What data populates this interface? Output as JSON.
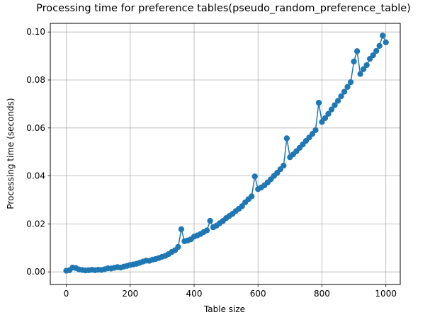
{
  "figure": {
    "title": "Processing time for preference tables(pseudo_random_preference_table)",
    "xlabel": "Table size",
    "ylabel": "Processing time (seconds)"
  },
  "chart_data": {
    "type": "line",
    "marker": "o",
    "color": "#1f77b4",
    "grid": true,
    "grid_color": "#b0b0b0",
    "spine_color": "#000000",
    "title": "Processing time for preference tables(pseudo_random_preference_table)",
    "xlabel": "Table size",
    "ylabel": "Processing time (seconds)",
    "xlim": [
      -50,
      1045
    ],
    "ylim": [
      -0.00525,
      0.1036
    ],
    "xticks": [
      0,
      200,
      400,
      600,
      800,
      1000
    ],
    "xtick_labels": [
      "0",
      "200",
      "400",
      "600",
      "800",
      "1000"
    ],
    "yticks": [
      0.0,
      0.02,
      0.04,
      0.06,
      0.08,
      0.1
    ],
    "ytick_labels": [
      "0.00",
      "0.02",
      "0.04",
      "0.06",
      "0.08",
      "0.10"
    ],
    "x": [
      0,
      10,
      20,
      30,
      40,
      50,
      60,
      70,
      80,
      90,
      100,
      110,
      120,
      130,
      140,
      150,
      160,
      170,
      180,
      190,
      200,
      210,
      220,
      230,
      240,
      250,
      260,
      270,
      280,
      290,
      300,
      310,
      320,
      330,
      340,
      350,
      360,
      370,
      380,
      390,
      400,
      410,
      420,
      430,
      440,
      450,
      460,
      470,
      480,
      490,
      500,
      510,
      520,
      530,
      540,
      550,
      560,
      570,
      580,
      590,
      600,
      610,
      620,
      630,
      640,
      650,
      660,
      670,
      680,
      690,
      700,
      710,
      720,
      730,
      740,
      750,
      760,
      770,
      780,
      790,
      800,
      810,
      820,
      830,
      840,
      850,
      860,
      870,
      880,
      890,
      900,
      910,
      920,
      930,
      940,
      950,
      960,
      970,
      980,
      990,
      1000
    ],
    "y": [
      0.0005,
      0.0007,
      0.0018,
      0.0016,
      0.001,
      0.0008,
      0.0006,
      0.0007,
      0.0009,
      0.0007,
      0.0009,
      0.0008,
      0.0011,
      0.0015,
      0.0014,
      0.0017,
      0.002,
      0.0018,
      0.0022,
      0.0025,
      0.0029,
      0.0031,
      0.0034,
      0.0038,
      0.0043,
      0.0047,
      0.0046,
      0.0051,
      0.0054,
      0.0058,
      0.0063,
      0.0067,
      0.0074,
      0.0083,
      0.009,
      0.0104,
      0.0178,
      0.0128,
      0.0131,
      0.0136,
      0.0147,
      0.0152,
      0.0158,
      0.0166,
      0.0173,
      0.0213,
      0.0186,
      0.0193,
      0.0203,
      0.0212,
      0.0224,
      0.0233,
      0.0242,
      0.0253,
      0.0263,
      0.0274,
      0.029,
      0.0303,
      0.0315,
      0.0398,
      0.0345,
      0.0352,
      0.0361,
      0.0373,
      0.0386,
      0.04,
      0.0413,
      0.0428,
      0.0443,
      0.0557,
      0.0478,
      0.049,
      0.0503,
      0.0517,
      0.0531,
      0.0546,
      0.056,
      0.0575,
      0.0591,
      0.0705,
      0.0625,
      0.0641,
      0.0659,
      0.0677,
      0.0695,
      0.0713,
      0.0732,
      0.0751,
      0.0771,
      0.0791,
      0.0877,
      0.092,
      0.0825,
      0.0845,
      0.0862,
      0.0888,
      0.0903,
      0.0921,
      0.0942,
      0.0985,
      0.0957
    ]
  }
}
